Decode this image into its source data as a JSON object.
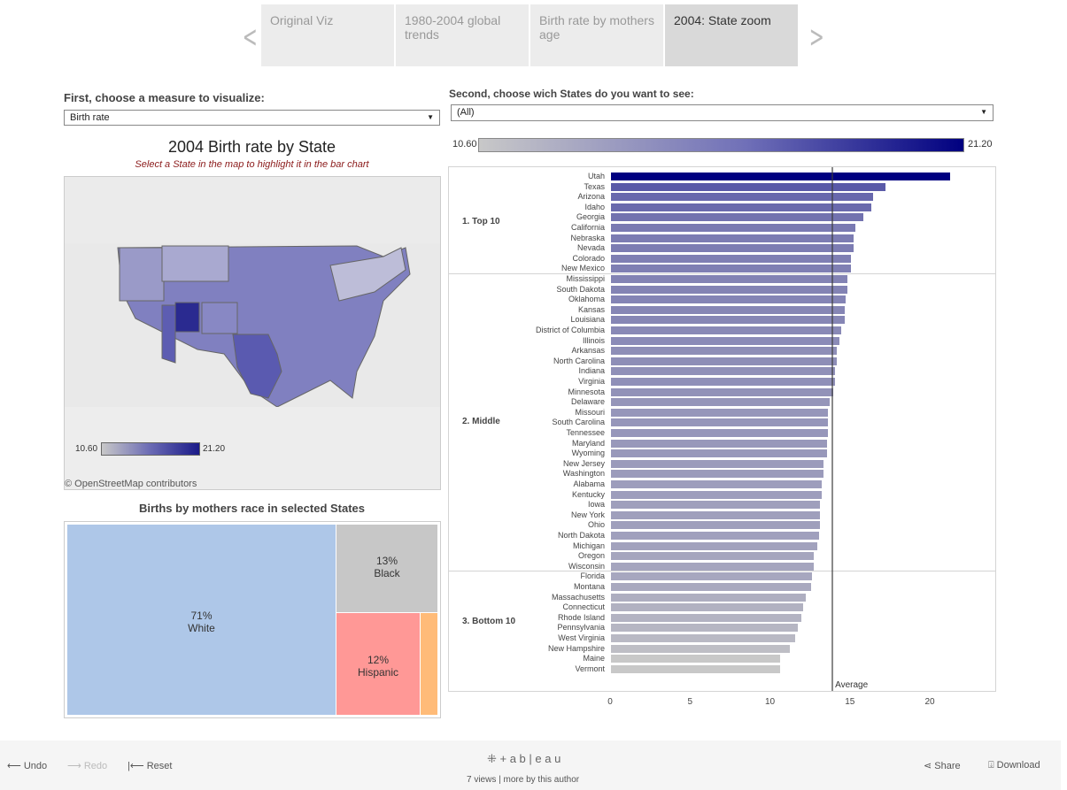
{
  "nav": {
    "tabs": [
      "Original Viz",
      "1980-2004 global trends",
      "Birth rate by mothers age",
      "2004: State zoom"
    ],
    "active": 3
  },
  "left": {
    "measure_label": "First, choose a measure to visualize:",
    "measure_value": "Birth rate",
    "map_title": "2004 Birth rate by State",
    "map_subtitle": "Select a State in the map to highlight it in the bar chart",
    "legend_min": "10.60",
    "legend_max": "21.20",
    "attribution": "© OpenStreetMap contributors",
    "treemap_title": "Births by mothers race in selected States"
  },
  "treemap": [
    {
      "pct": "71%",
      "label": "White",
      "color": "#aec7e8"
    },
    {
      "pct": "13%",
      "label": "Black",
      "color": "#c7c7c7"
    },
    {
      "pct": "12%",
      "label": "Hispanic",
      "color": "#ff9896"
    },
    {
      "pct": "",
      "label": "",
      "color": "#ffbb78"
    }
  ],
  "right": {
    "states_label": "Second, choose wich States do you want to see:",
    "states_value": "(All)",
    "legend_min": "10.60",
    "legend_max": "21.20"
  },
  "chart_data": {
    "type": "bar",
    "title": "2004 Birth rate by State",
    "xlim": [
      0,
      23
    ],
    "xticks": [
      0,
      5,
      10,
      15,
      20
    ],
    "average": 13.8,
    "average_label": "Average",
    "groups": [
      {
        "name": "1. Top 10",
        "states": [
          [
            "Utah",
            21.2
          ],
          [
            "Texas",
            17.2
          ],
          [
            "Arizona",
            16.4
          ],
          [
            "Idaho",
            16.3
          ],
          [
            "Georgia",
            15.8
          ],
          [
            "California",
            15.3
          ],
          [
            "Nebraska",
            15.2
          ],
          [
            "Nevada",
            15.2
          ],
          [
            "Colorado",
            15.0
          ],
          [
            "New Mexico",
            15.0
          ]
        ]
      },
      {
        "name": "2. Middle",
        "states": [
          [
            "Mississippi",
            14.8
          ],
          [
            "South Dakota",
            14.8
          ],
          [
            "Oklahoma",
            14.7
          ],
          [
            "Kansas",
            14.6
          ],
          [
            "Louisiana",
            14.6
          ],
          [
            "District of Columbia",
            14.4
          ],
          [
            "Illinois",
            14.3
          ],
          [
            "Arkansas",
            14.1
          ],
          [
            "North Carolina",
            14.1
          ],
          [
            "Indiana",
            14.0
          ],
          [
            "Virginia",
            14.0
          ],
          [
            "Minnesota",
            13.9
          ],
          [
            "Delaware",
            13.7
          ],
          [
            "Missouri",
            13.6
          ],
          [
            "South Carolina",
            13.6
          ],
          [
            "Tennessee",
            13.6
          ],
          [
            "Maryland",
            13.5
          ],
          [
            "Wyoming",
            13.5
          ],
          [
            "New Jersey",
            13.3
          ],
          [
            "Washington",
            13.3
          ],
          [
            "Alabama",
            13.2
          ],
          [
            "Kentucky",
            13.2
          ],
          [
            "Iowa",
            13.1
          ],
          [
            "New York",
            13.1
          ],
          [
            "Ohio",
            13.1
          ],
          [
            "North Dakota",
            13.0
          ],
          [
            "Michigan",
            12.9
          ],
          [
            "Oregon",
            12.7
          ],
          [
            "Wisconsin",
            12.7
          ]
        ]
      },
      {
        "name": "3. Bottom 10",
        "states": [
          [
            "Florida",
            12.6
          ],
          [
            "Montana",
            12.5
          ],
          [
            "Massachusetts",
            12.2
          ],
          [
            "Connecticut",
            12.0
          ],
          [
            "Rhode Island",
            11.9
          ],
          [
            "Pennsylvania",
            11.7
          ],
          [
            "West Virginia",
            11.5
          ],
          [
            "New Hampshire",
            11.2
          ],
          [
            "Maine",
            10.6
          ],
          [
            "Vermont",
            10.6
          ]
        ]
      }
    ]
  },
  "footer": {
    "undo": "Undo",
    "redo": "Redo",
    "reset": "Reset",
    "brand": "+ a b | e a u",
    "views": "7 views",
    "more": "more by this author",
    "share": "Share",
    "download": "Download"
  }
}
